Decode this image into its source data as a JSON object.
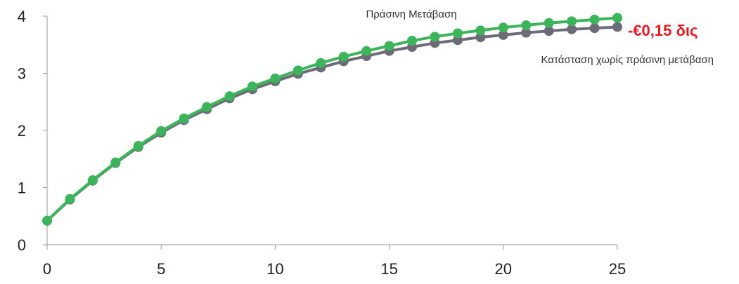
{
  "chart_data": {
    "type": "line",
    "x": [
      0,
      1,
      2,
      3,
      4,
      5,
      6,
      7,
      8,
      9,
      10,
      11,
      12,
      13,
      14,
      15,
      16,
      17,
      18,
      19,
      20,
      21,
      22,
      23,
      24,
      25
    ],
    "series": [
      {
        "name": "Κατάσταση χωρίς πράσινη μετάβαση",
        "color": "#6d6b78",
        "values": [
          0.42,
          0.79,
          1.12,
          1.43,
          1.71,
          1.96,
          2.18,
          2.37,
          2.56,
          2.72,
          2.86,
          2.99,
          3.1,
          3.21,
          3.3,
          3.39,
          3.46,
          3.53,
          3.58,
          3.63,
          3.67,
          3.71,
          3.74,
          3.77,
          3.79,
          3.81
        ]
      },
      {
        "name": "Πράσινη Μετάβαση",
        "color": "#3cb55a",
        "values": [
          0.42,
          0.8,
          1.13,
          1.44,
          1.73,
          1.99,
          2.21,
          2.41,
          2.6,
          2.77,
          2.91,
          3.05,
          3.18,
          3.29,
          3.39,
          3.48,
          3.57,
          3.64,
          3.7,
          3.75,
          3.8,
          3.84,
          3.88,
          3.91,
          3.94,
          3.97
        ]
      }
    ],
    "xlim": [
      0,
      25
    ],
    "ylim": [
      0,
      4
    ],
    "xticks": [
      0,
      5,
      10,
      15,
      20,
      25
    ],
    "yticks": [
      0,
      1,
      2,
      3,
      4
    ],
    "grid": false,
    "annotation": {
      "text": "-€0,15 δις",
      "color": "#e8191f"
    }
  }
}
